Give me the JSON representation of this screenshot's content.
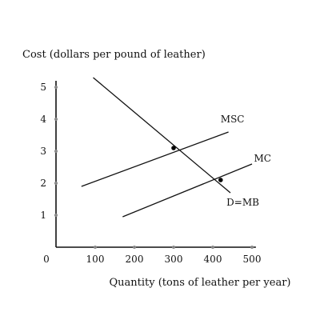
{
  "chart_data": {
    "type": "line",
    "title": "",
    "ylabel": "Cost (dollars per pound of leather)",
    "xlabel": "Quantity (tons of leather per year)",
    "xlim": [
      0,
      500
    ],
    "ylim": [
      0,
      5
    ],
    "x_ticks": [
      0,
      100,
      200,
      300,
      400,
      500
    ],
    "x_tick_labels": [
      "0",
      "100",
      "200",
      "300",
      "400",
      "500"
    ],
    "y_ticks": [
      1,
      2,
      3,
      4,
      5
    ],
    "y_tick_labels": [
      "1",
      "2",
      "3",
      "4",
      "5"
    ],
    "grid": false,
    "series": [
      {
        "name": "D=MB",
        "color": "#111111",
        "x": [
          95,
          445
        ],
        "y": [
          5.3,
          1.7
        ]
      },
      {
        "name": "MSC",
        "color": "#111111",
        "x": [
          65,
          440
        ],
        "y": [
          1.9,
          3.6
        ]
      },
      {
        "name": "MC",
        "color": "#111111",
        "x": [
          170,
          500
        ],
        "y": [
          0.95,
          2.6
        ]
      }
    ],
    "points": [
      {
        "x": 300,
        "y": 3.1
      },
      {
        "x": 420,
        "y": 2.1
      }
    ],
    "axis_color": "#111111",
    "tick_dot_color": "#888888"
  }
}
